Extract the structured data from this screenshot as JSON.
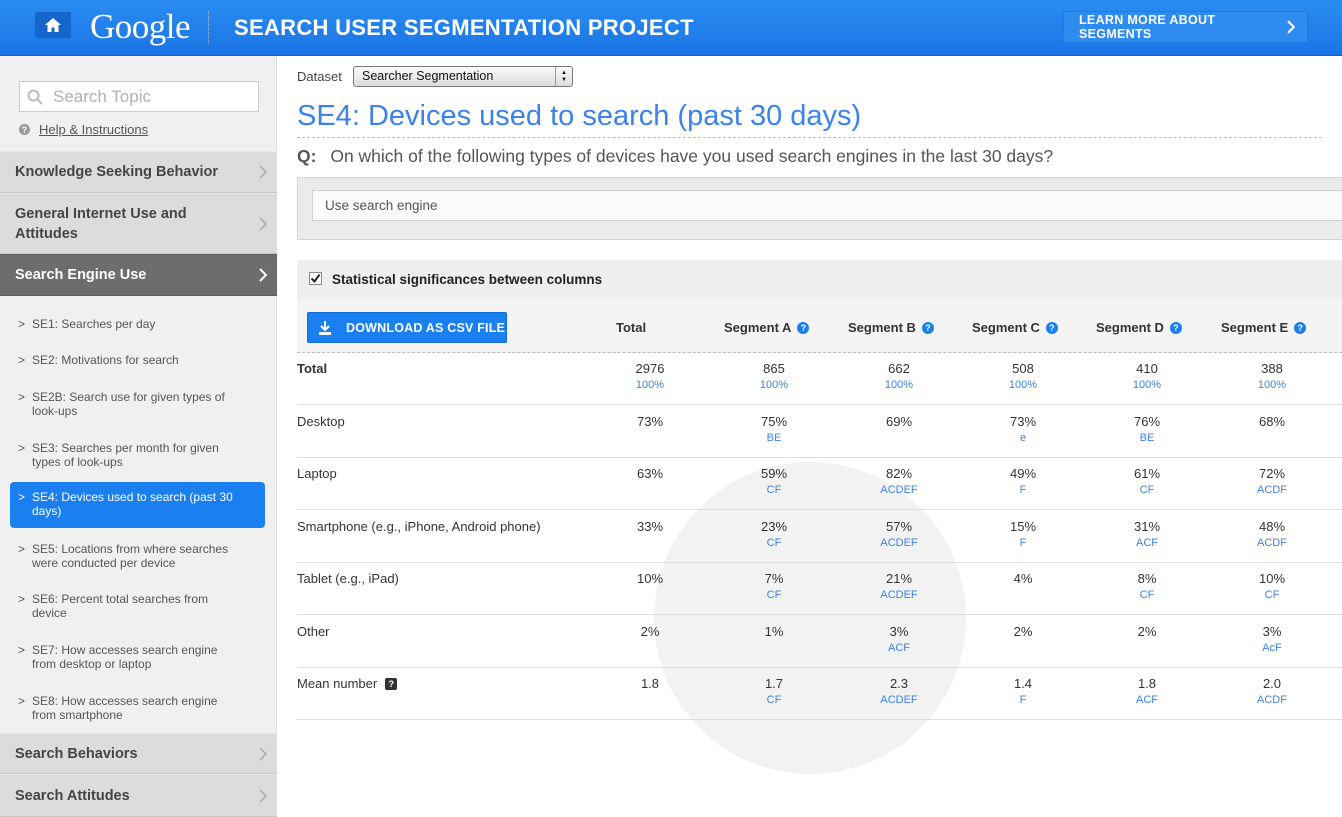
{
  "header": {
    "logo": "Google",
    "title": "SEARCH USER SEGMENTATION PROJECT",
    "learn_more": "LEARN MORE ABOUT SEGMENTS"
  },
  "sidebar": {
    "search_placeholder": "Search Topic",
    "help": "Help & Instructions",
    "categories_top": [
      {
        "label": "Knowledge Seeking Behavior"
      },
      {
        "label": "General Internet Use and Attitudes"
      },
      {
        "label": "Search Engine Use"
      }
    ],
    "subitems": [
      {
        "label": "SE1: Searches per day"
      },
      {
        "label": "SE2: Motivations for search"
      },
      {
        "label": "SE2B: Search use for given types of look-ups"
      },
      {
        "label": "SE3: Searches per month for given types of look-ups"
      },
      {
        "label": "SE4: Devices used to search (past 30 days)"
      },
      {
        "label": "SE5: Locations from where searches were conducted per device"
      },
      {
        "label": "SE6: Percent total searches from device"
      },
      {
        "label": "SE7: How accesses search engine from desktop or laptop"
      },
      {
        "label": "SE8: How accesses search engine from smartphone"
      }
    ],
    "categories_bottom": [
      {
        "label": "Search Behaviors"
      },
      {
        "label": "Search Attitudes"
      }
    ]
  },
  "main": {
    "dataset_label": "Dataset",
    "dataset_value": "Searcher Segmentation",
    "title_code": "SE4:",
    "title_text": "Devices used to search (past 30 days)",
    "question_label": "Q:",
    "question": "On which of the following types of devices have you used search engines in the last 30 days?",
    "response_select": "Use search engine",
    "stat_label": "Statistical significances between columns",
    "csv_button": "DOWNLOAD AS CSV FILE",
    "columns": [
      "Total",
      "Segment A",
      "Segment B",
      "Segment C",
      "Segment D",
      "Segment E"
    ],
    "rows": [
      {
        "label": "Total",
        "cells": [
          {
            "v": "2976",
            "s": "100%"
          },
          {
            "v": "865",
            "s": "100%"
          },
          {
            "v": "662",
            "s": "100%"
          },
          {
            "v": "508",
            "s": "100%"
          },
          {
            "v": "410",
            "s": "100%"
          },
          {
            "v": "388",
            "s": "100%"
          }
        ]
      },
      {
        "label": "Desktop",
        "cells": [
          {
            "v": "73%",
            "s": ""
          },
          {
            "v": "75%",
            "s": "BE"
          },
          {
            "v": "69%",
            "s": ""
          },
          {
            "v": "73%",
            "s": "e"
          },
          {
            "v": "76%",
            "s": "BE"
          },
          {
            "v": "68%",
            "s": ""
          }
        ]
      },
      {
        "label": "Laptop",
        "cells": [
          {
            "v": "63%",
            "s": ""
          },
          {
            "v": "59%",
            "s": "CF"
          },
          {
            "v": "82%",
            "s": "ACDEF"
          },
          {
            "v": "49%",
            "s": "F"
          },
          {
            "v": "61%",
            "s": "CF"
          },
          {
            "v": "72%",
            "s": "ACDF"
          }
        ]
      },
      {
        "label": "Smartphone (e.g., iPhone, Android phone)",
        "cells": [
          {
            "v": "33%",
            "s": ""
          },
          {
            "v": "23%",
            "s": "CF"
          },
          {
            "v": "57%",
            "s": "ACDEF"
          },
          {
            "v": "15%",
            "s": "F"
          },
          {
            "v": "31%",
            "s": "ACF"
          },
          {
            "v": "48%",
            "s": "ACDF"
          }
        ]
      },
      {
        "label": "Tablet (e.g., iPad)",
        "cells": [
          {
            "v": "10%",
            "s": ""
          },
          {
            "v": "7%",
            "s": "CF"
          },
          {
            "v": "21%",
            "s": "ACDEF"
          },
          {
            "v": "4%",
            "s": ""
          },
          {
            "v": "8%",
            "s": "CF"
          },
          {
            "v": "10%",
            "s": "CF"
          }
        ]
      },
      {
        "label": "Other",
        "cells": [
          {
            "v": "2%",
            "s": ""
          },
          {
            "v": "1%",
            "s": ""
          },
          {
            "v": "3%",
            "s": "ACF"
          },
          {
            "v": "2%",
            "s": ""
          },
          {
            "v": "2%",
            "s": ""
          },
          {
            "v": "3%",
            "s": "AcF"
          }
        ]
      },
      {
        "label": "Mean number",
        "cells": [
          {
            "v": "1.8",
            "s": ""
          },
          {
            "v": "1.7",
            "s": "CF"
          },
          {
            "v": "2.3",
            "s": "ACDEF"
          },
          {
            "v": "1.4",
            "s": "F"
          },
          {
            "v": "1.8",
            "s": "ACF"
          },
          {
            "v": "2.0",
            "s": "ACDF"
          }
        ]
      }
    ]
  }
}
